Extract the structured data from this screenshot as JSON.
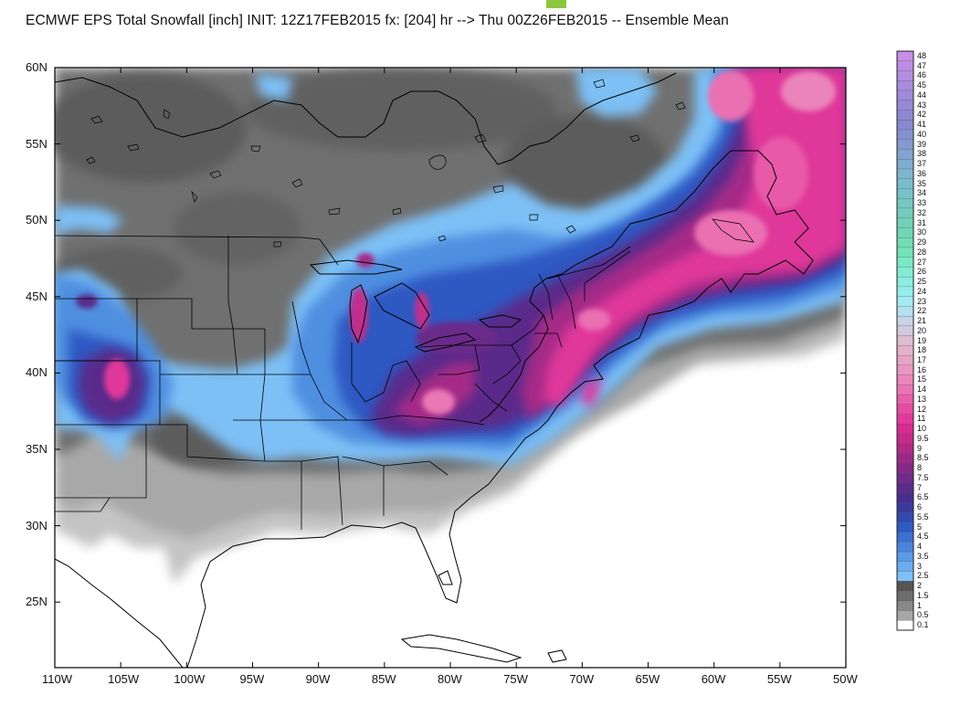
{
  "title": "ECMWF EPS Total Snowfall [inch] INIT: 12Z17FEB2015 fx: [204] hr --> Thu 00Z26FEB2015 -- Ensemble Mean",
  "lat_labels": [
    "60N",
    "55N",
    "50N",
    "45N",
    "40N",
    "35N",
    "30N",
    "25N"
  ],
  "lon_labels": [
    "110W",
    "105W",
    "100W",
    "95W",
    "90W",
    "85W",
    "80W",
    "75W",
    "70W",
    "65W",
    "60W",
    "55W",
    "50W"
  ],
  "colorbar": {
    "labels": [
      "48",
      "47",
      "46",
      "45",
      "44",
      "43",
      "42",
      "41",
      "40",
      "39",
      "38",
      "37",
      "36",
      "35",
      "34",
      "33",
      "32",
      "31",
      "30",
      "29",
      "28",
      "27",
      "26",
      "25",
      "24",
      "23",
      "22",
      "21",
      "20",
      "19",
      "18",
      "17",
      "16",
      "15",
      "14",
      "13",
      "12",
      "11",
      "10",
      "9.5",
      "9",
      "8.5",
      "8",
      "7.5",
      "7",
      "6.5",
      "6",
      "5.5",
      "5",
      "4.5",
      "4",
      "3.5",
      "3",
      "2.5",
      "2",
      "1.5",
      "1",
      "0.5",
      "0.1"
    ],
    "colors": [
      "#c78ee6",
      "#bd8de3",
      "#b48ce0",
      "#a98bdc",
      "#a08ad9",
      "#9789d6",
      "#8e88d3",
      "#8788cf",
      "#8590cf",
      "#839acf",
      "#81a3d0",
      "#7faccf",
      "#7db5cf",
      "#7bbccc",
      "#79c2c8",
      "#77c6c3",
      "#75cbbd",
      "#73d0b8",
      "#72d6b4",
      "#72dcb4",
      "#74e2ba",
      "#7ae8c6",
      "#82ecd2",
      "#8beee0",
      "#95eeec",
      "#a4eaf3",
      "#b6e0ef",
      "#c6d4e6",
      "#d3c8dc",
      "#dcbdd2",
      "#e3b1cb",
      "#e7a5c6",
      "#e997c1",
      "#ea87bc",
      "#eb74b4",
      "#ea5fab",
      "#e74aa2",
      "#e23a9a",
      "#d92b8f",
      "#c72a88",
      "#b02a87",
      "#9a2a87",
      "#852a87",
      "#702b88",
      "#5b2c8a",
      "#4a2d8e",
      "#3a3a9c",
      "#3349b0",
      "#2e5ac4",
      "#3c6fd2",
      "#4a85dc",
      "#5b9ae6",
      "#6cadef",
      "#7dc0f6",
      "#555555",
      "#6e6e6e",
      "#888888",
      "#a6a6a6",
      "#ffffff"
    ]
  }
}
